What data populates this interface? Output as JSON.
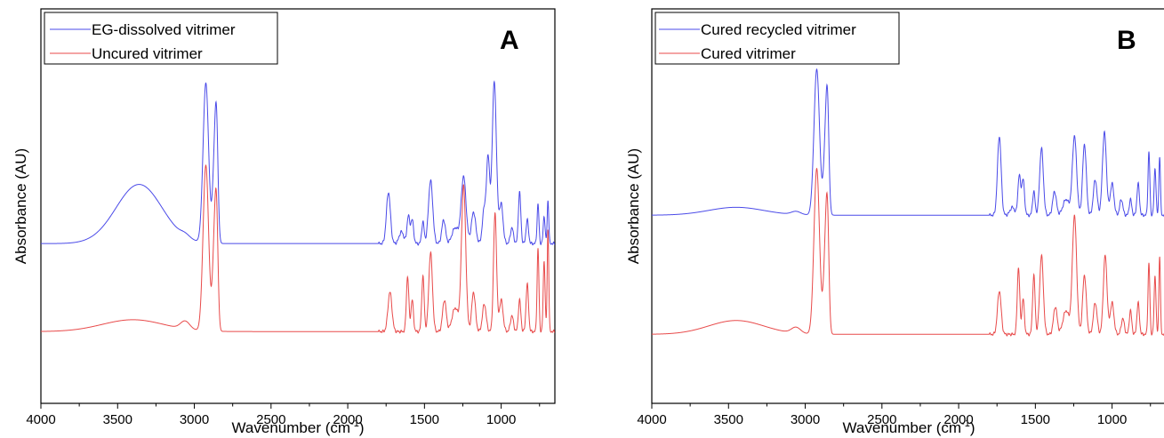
{
  "colors": {
    "blue": "#4a4ae8",
    "red": "#e84a4a"
  },
  "chart_data": [
    {
      "type": "line",
      "panel_label": "A",
      "xlabel_main": "Wavenumber (cm",
      "xlabel_sup": "-1",
      "xlabel_close": ")",
      "ylabel": "Absorbance (AU)",
      "xlim": [
        4000,
        650
      ],
      "x_reversed": true,
      "xticks": [
        "4000",
        "3500",
        "3000",
        "2500",
        "2000",
        "1500",
        "1000"
      ],
      "ylim": [
        0,
        1
      ],
      "y_ticks_shown": false,
      "legend": "top-left",
      "series": [
        {
          "name": "EG-dissolved vitrimer",
          "color": "#4a4ae8",
          "baseline": 0.405,
          "peaks": [
            [
              3360,
              0.15,
              150
            ],
            [
              3060,
              0.008,
              30
            ],
            [
              2925,
              0.405,
              18
            ],
            [
              2870,
              0.18,
              12
            ],
            [
              2855,
              0.26,
              10
            ],
            [
              1735,
              0.13,
              13
            ],
            [
              1650,
              0.03,
              15
            ],
            [
              1605,
              0.07,
              9
            ],
            [
              1580,
              0.06,
              9
            ],
            [
              1510,
              0.055,
              8
            ],
            [
              1460,
              0.16,
              14
            ],
            [
              1375,
              0.06,
              12
            ],
            [
              1300,
              0.04,
              20
            ],
            [
              1245,
              0.17,
              16
            ],
            [
              1180,
              0.08,
              14
            ],
            [
              1110,
              0.09,
              12
            ],
            [
              1085,
              0.21,
              10
            ],
            [
              1045,
              0.41,
              14
            ],
            [
              1000,
              0.1,
              12
            ],
            [
              930,
              0.04,
              10
            ],
            [
              880,
              0.13,
              8
            ],
            [
              830,
              0.06,
              8
            ],
            [
              760,
              0.1,
              6
            ],
            [
              720,
              0.07,
              6
            ],
            [
              695,
              0.11,
              5
            ]
          ]
        },
        {
          "name": "Uncured vitrimer",
          "color": "#e84a4a",
          "baseline": 0.182,
          "peaks": [
            [
              3400,
              0.03,
              200
            ],
            [
              3060,
              0.02,
              30
            ],
            [
              2925,
              0.42,
              18
            ],
            [
              2870,
              0.2,
              12
            ],
            [
              2855,
              0.25,
              10
            ],
            [
              1725,
              0.1,
              13
            ],
            [
              1610,
              0.14,
              8
            ],
            [
              1580,
              0.08,
              8
            ],
            [
              1510,
              0.14,
              8
            ],
            [
              1460,
              0.2,
              12
            ],
            [
              1370,
              0.08,
              12
            ],
            [
              1300,
              0.06,
              20
            ],
            [
              1245,
              0.37,
              14
            ],
            [
              1180,
              0.1,
              12
            ],
            [
              1110,
              0.07,
              12
            ],
            [
              1040,
              0.3,
              10
            ],
            [
              1000,
              0.08,
              12
            ],
            [
              930,
              0.04,
              10
            ],
            [
              880,
              0.08,
              8
            ],
            [
              830,
              0.12,
              8
            ],
            [
              760,
              0.21,
              6
            ],
            [
              720,
              0.18,
              6
            ],
            [
              695,
              0.26,
              5
            ]
          ]
        }
      ]
    },
    {
      "type": "line",
      "panel_label": "B",
      "xlabel_main": "Wavenumber (cm",
      "xlabel_sup": "-1",
      "xlabel_close": ")",
      "ylabel": "Absorbance (AU)",
      "xlim": [
        4000,
        650
      ],
      "x_reversed": true,
      "xticks": [
        "4000",
        "3500",
        "3000",
        "2500",
        "2000",
        "1500",
        "1000"
      ],
      "ylim": [
        0,
        1
      ],
      "y_ticks_shown": false,
      "legend": "top-left",
      "series": [
        {
          "name": "Cured recycled vitrimer",
          "color": "#4a4ae8",
          "baseline": 0.477,
          "peaks": [
            [
              3450,
              0.02,
              180
            ],
            [
              3060,
              0.008,
              30
            ],
            [
              2925,
              0.37,
              18
            ],
            [
              2870,
              0.15,
              12
            ],
            [
              2855,
              0.25,
              10
            ],
            [
              1735,
              0.2,
              12
            ],
            [
              1650,
              0.02,
              15
            ],
            [
              1605,
              0.1,
              9
            ],
            [
              1580,
              0.09,
              9
            ],
            [
              1510,
              0.06,
              8
            ],
            [
              1460,
              0.17,
              12
            ],
            [
              1375,
              0.06,
              12
            ],
            [
              1300,
              0.04,
              20
            ],
            [
              1245,
              0.2,
              14
            ],
            [
              1180,
              0.18,
              12
            ],
            [
              1110,
              0.09,
              12
            ],
            [
              1050,
              0.21,
              13
            ],
            [
              1000,
              0.08,
              12
            ],
            [
              940,
              0.04,
              10
            ],
            [
              880,
              0.04,
              8
            ],
            [
              830,
              0.08,
              8
            ],
            [
              760,
              0.16,
              6
            ],
            [
              720,
              0.12,
              6
            ],
            [
              690,
              0.15,
              5
            ]
          ]
        },
        {
          "name": "Cured vitrimer",
          "color": "#e84a4a",
          "baseline": 0.175,
          "peaks": [
            [
              3450,
              0.035,
              180
            ],
            [
              3060,
              0.015,
              30
            ],
            [
              2925,
              0.42,
              18
            ],
            [
              2870,
              0.18,
              12
            ],
            [
              2855,
              0.26,
              10
            ],
            [
              1735,
              0.11,
              12
            ],
            [
              1610,
              0.17,
              8
            ],
            [
              1580,
              0.09,
              8
            ],
            [
              1510,
              0.15,
              8
            ],
            [
              1460,
              0.2,
              12
            ],
            [
              1370,
              0.07,
              12
            ],
            [
              1300,
              0.06,
              20
            ],
            [
              1245,
              0.3,
              14
            ],
            [
              1180,
              0.15,
              12
            ],
            [
              1110,
              0.08,
              12
            ],
            [
              1045,
              0.2,
              12
            ],
            [
              1000,
              0.08,
              12
            ],
            [
              930,
              0.04,
              10
            ],
            [
              880,
              0.06,
              8
            ],
            [
              830,
              0.08,
              8
            ],
            [
              760,
              0.18,
              6
            ],
            [
              720,
              0.15,
              6
            ],
            [
              690,
              0.2,
              5
            ]
          ]
        }
      ]
    }
  ]
}
